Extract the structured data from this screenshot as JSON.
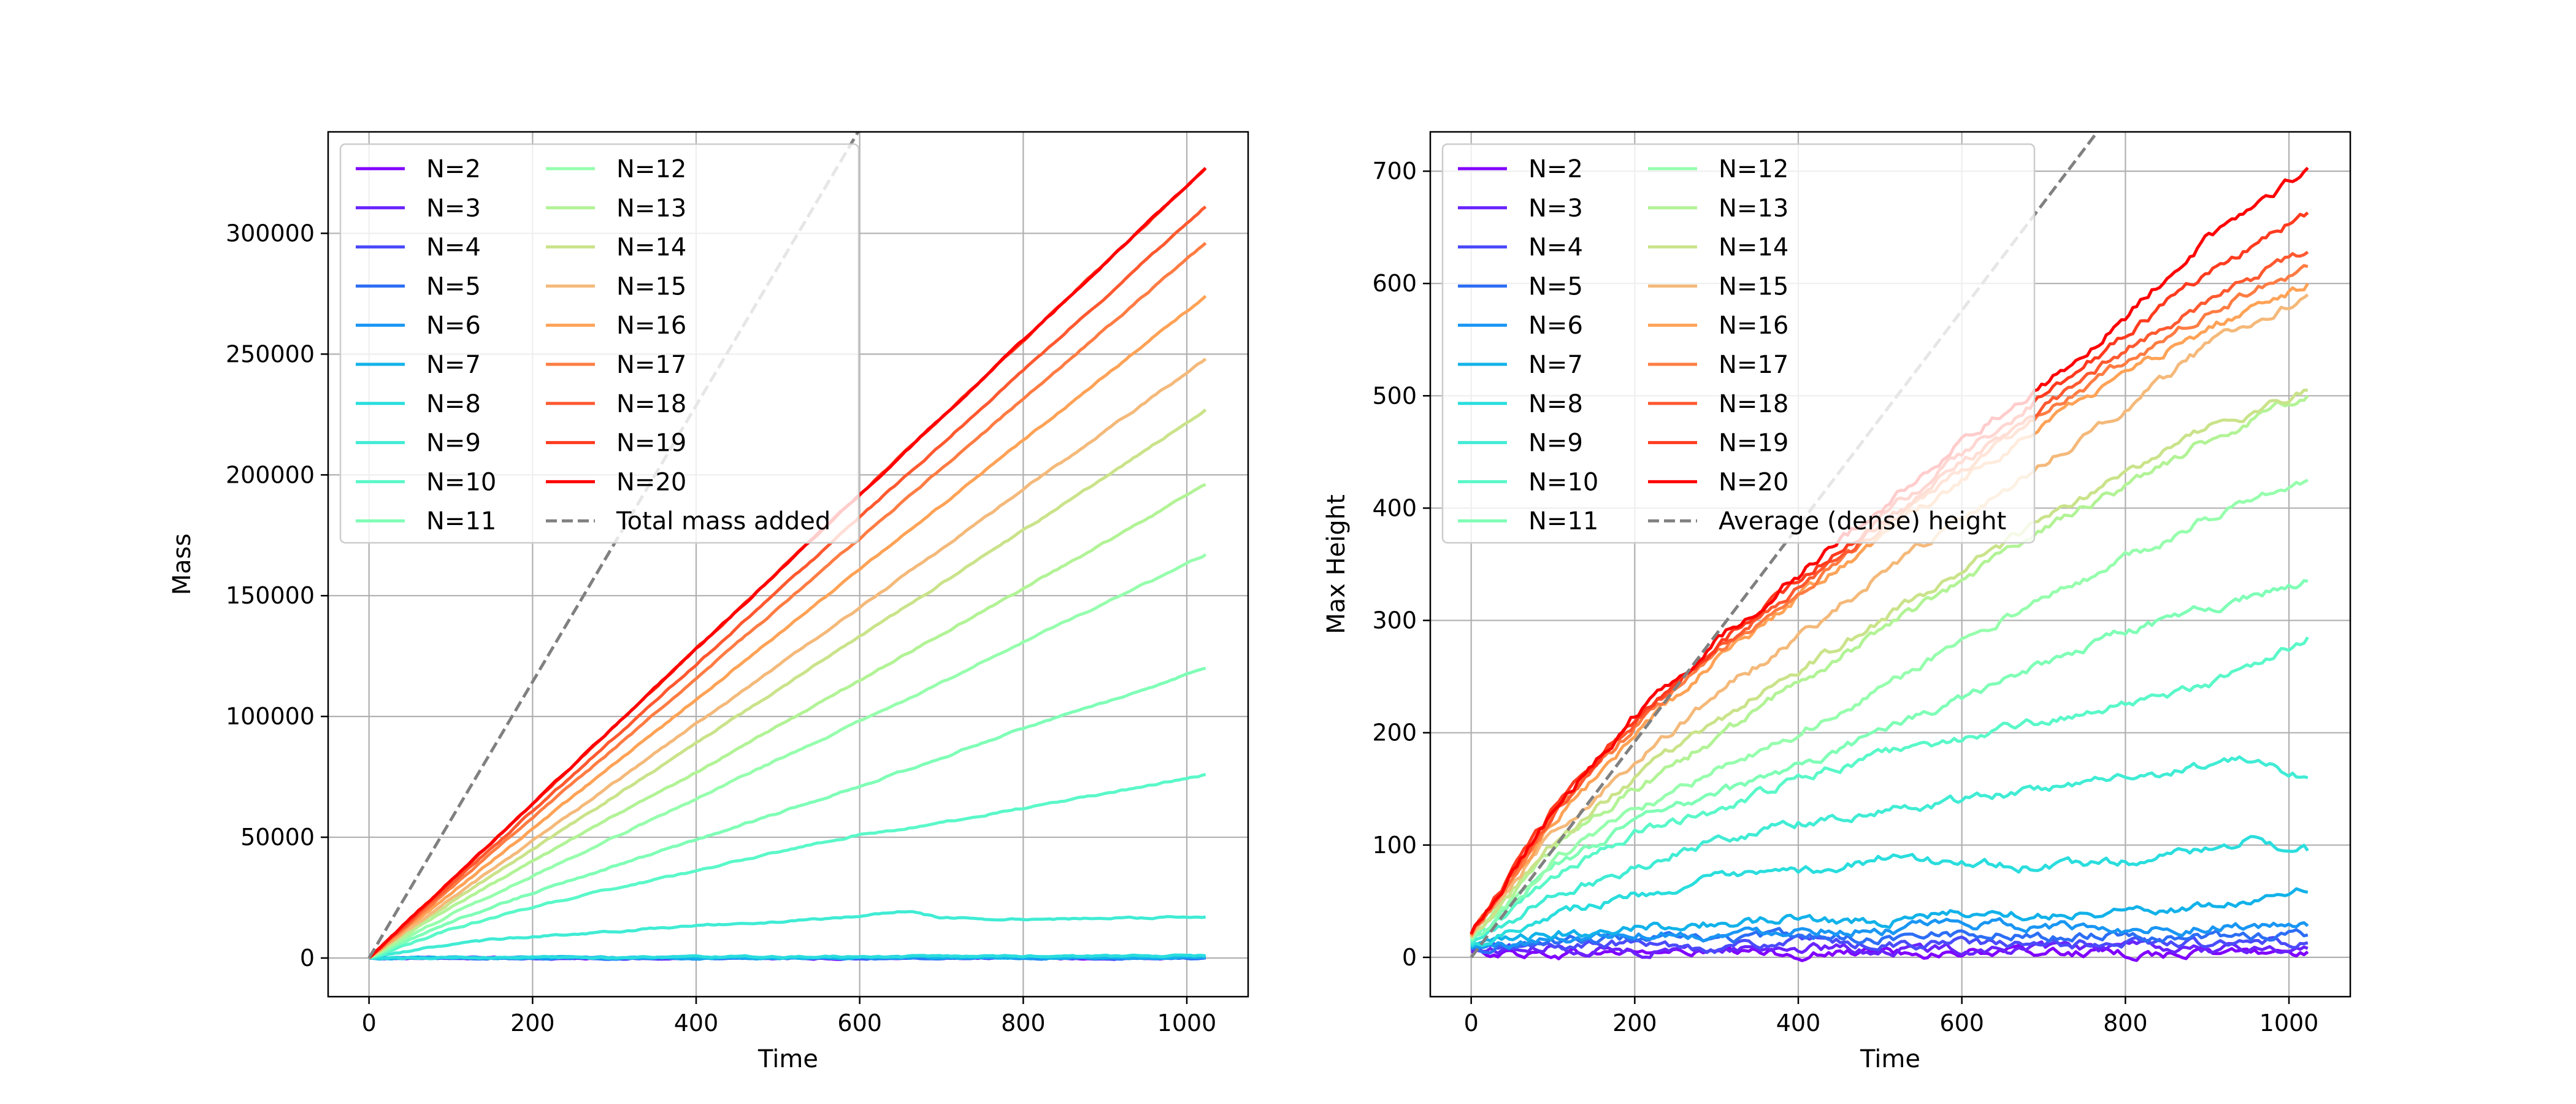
{
  "chart_data": [
    {
      "type": "line",
      "xlabel": "Time",
      "ylabel": "Mass",
      "xlim": [
        -50,
        1075
      ],
      "ylim": [
        -16000,
        342000
      ],
      "xticks": [
        0,
        200,
        400,
        600,
        800,
        1000
      ],
      "yticks": [
        0,
        50000,
        100000,
        150000,
        200000,
        250000,
        300000
      ],
      "ytick_labels": [
        "0",
        "50000",
        "100000",
        "150000",
        "200000",
        "250000",
        "300000"
      ],
      "grid": true,
      "legend": {
        "placement": "top-left",
        "columns": 2
      },
      "series": [
        {
          "name": "N=2",
          "color": "#8000ff",
          "x": [
            0,
            1023
          ],
          "y": [
            0,
            6
          ]
        },
        {
          "name": "N=3",
          "color": "#6a23fe",
          "x": [
            0,
            1023
          ],
          "y": [
            0,
            10
          ]
        },
        {
          "name": "N=4",
          "color": "#4a4afb",
          "x": [
            0,
            1023
          ],
          "y": [
            0,
            20
          ]
        },
        {
          "name": "N=5",
          "color": "#2c6ef5",
          "x": [
            0,
            1023
          ],
          "y": [
            0,
            40
          ]
        },
        {
          "name": "N=6",
          "color": "#1996f3",
          "x": [
            0,
            1023
          ],
          "y": [
            0,
            100
          ]
        },
        {
          "name": "N=7",
          "color": "#12b2e9",
          "x": [
            0,
            1023
          ],
          "y": [
            0,
            300
          ]
        },
        {
          "name": "N=8",
          "color": "#2adddd",
          "x": [
            0,
            1023
          ],
          "y": [
            0,
            900
          ]
        },
        {
          "name": "N=9",
          "color": "#40ecd4",
          "x": [
            0,
            100,
            200,
            300,
            400,
            500,
            600,
            660,
            700,
            800,
            900,
            1023
          ],
          "y": [
            0,
            6000,
            9000,
            11000,
            13500,
            15000,
            17500,
            19500,
            16500,
            16000,
            16500,
            17000
          ]
        },
        {
          "name": "N=10",
          "color": "#5af8c8",
          "x": [
            0,
            100,
            200,
            300,
            400,
            500,
            600,
            700,
            800,
            900,
            1023
          ],
          "y": [
            0,
            12000,
            21000,
            29000,
            36000,
            44000,
            51000,
            56000,
            62000,
            68000,
            76000
          ]
        },
        {
          "name": "N=11",
          "color": "#7ffeb6",
          "x": [
            0,
            100,
            200,
            300,
            400,
            500,
            600,
            700,
            800,
            900,
            1023
          ],
          "y": [
            0,
            15000,
            27000,
            38000,
            49000,
            60000,
            71000,
            83000,
            95000,
            106000,
            120000
          ]
        },
        {
          "name": "N=12",
          "color": "#96fead",
          "x": [
            0,
            100,
            200,
            300,
            400,
            500,
            600,
            700,
            800,
            900,
            1023
          ],
          "y": [
            0,
            18000,
            34000,
            50000,
            66000,
            82000,
            98000,
            114000,
            131000,
            147000,
            167000
          ]
        },
        {
          "name": "N=13",
          "color": "#b2f396",
          "x": [
            0,
            100,
            200,
            300,
            400,
            500,
            600,
            700,
            800,
            900,
            1023
          ],
          "y": [
            0,
            21000,
            40000,
            59000,
            77000,
            96000,
            115000,
            134000,
            153000,
            172000,
            196000
          ]
        },
        {
          "name": "N=14",
          "color": "#cae38a",
          "x": [
            0,
            100,
            200,
            300,
            400,
            500,
            600,
            700,
            800,
            900,
            1023
          ],
          "y": [
            0,
            23000,
            45000,
            67000,
            89000,
            111000,
            133000,
            155000,
            177000,
            199000,
            227000
          ]
        },
        {
          "name": "N=15",
          "color": "#f4b97a",
          "x": [
            0,
            100,
            200,
            300,
            400,
            500,
            600,
            700,
            800,
            900,
            1023
          ],
          "y": [
            0,
            24500,
            48500,
            72500,
            97000,
            121000,
            145000,
            169500,
            194000,
            218000,
            248000
          ]
        },
        {
          "name": "N=16",
          "color": "#ffa256",
          "x": [
            0,
            1023
          ],
          "y": [
            0,
            274000
          ]
        },
        {
          "name": "N=17",
          "color": "#ff7c43",
          "x": [
            0,
            1023
          ],
          "y": [
            0,
            296000
          ]
        },
        {
          "name": "N=18",
          "color": "#ff5930",
          "x": [
            0,
            1023
          ],
          "y": [
            0,
            311000
          ]
        },
        {
          "name": "N=19",
          "color": "#ff3b1f",
          "x": [
            0,
            1023
          ],
          "y": [
            0,
            327000
          ]
        },
        {
          "name": "N=20",
          "color": "#ff0000",
          "x": [
            0,
            1023
          ],
          "y": [
            0,
            327000
          ]
        },
        {
          "name": "Total mass added",
          "color": "#808080",
          "dashed": true,
          "x": [
            0,
            1023
          ],
          "y": [
            0,
            585000
          ]
        }
      ]
    },
    {
      "type": "line",
      "xlabel": "Time",
      "ylabel": "Max Height",
      "xlim": [
        -50,
        1075
      ],
      "ylim": [
        -35,
        735
      ],
      "xticks": [
        0,
        200,
        400,
        600,
        800,
        1000
      ],
      "yticks": [
        0,
        100,
        200,
        300,
        400,
        500,
        600,
        700
      ],
      "ytick_labels": [
        "0",
        "100",
        "200",
        "300",
        "400",
        "500",
        "600",
        "700"
      ],
      "grid": true,
      "legend": {
        "placement": "top-left",
        "columns": 2
      },
      "series": [
        {
          "name": "N=2",
          "color": "#8000ff",
          "x": [
            0,
            100,
            200,
            300,
            400,
            500,
            600,
            700,
            800,
            900,
            1023
          ],
          "y": [
            5,
            3,
            5,
            4,
            3,
            5,
            4,
            5,
            3,
            4,
            5
          ]
        },
        {
          "name": "N=3",
          "color": "#6a23fe",
          "x": [
            0,
            100,
            200,
            300,
            400,
            500,
            600,
            700,
            800,
            900,
            1023
          ],
          "y": [
            6,
            8,
            6,
            7,
            9,
            6,
            8,
            7,
            9,
            7,
            8
          ]
        },
        {
          "name": "N=4",
          "color": "#4a4afb",
          "x": [
            0,
            100,
            200,
            300,
            400,
            500,
            600,
            700,
            800,
            900,
            1023
          ],
          "y": [
            7,
            10,
            12,
            9,
            14,
            11,
            13,
            10,
            14,
            12,
            13
          ]
        },
        {
          "name": "N=5",
          "color": "#2c6ef5",
          "x": [
            0,
            100,
            200,
            300,
            400,
            500,
            600,
            700,
            800,
            900,
            1023
          ],
          "y": [
            8,
            14,
            18,
            15,
            20,
            17,
            22,
            19,
            21,
            18,
            20
          ]
        },
        {
          "name": "N=6",
          "color": "#1996f3",
          "x": [
            0,
            100,
            200,
            300,
            400,
            500,
            600,
            700,
            800,
            900,
            1023
          ],
          "y": [
            8,
            16,
            22,
            20,
            26,
            24,
            30,
            28,
            25,
            27,
            28
          ]
        },
        {
          "name": "N=7",
          "color": "#12b2e9",
          "x": [
            0,
            100,
            200,
            300,
            400,
            500,
            600,
            700,
            800,
            900,
            1023
          ],
          "y": [
            9,
            20,
            28,
            30,
            35,
            32,
            40,
            38,
            42,
            45,
            58
          ]
        },
        {
          "name": "N=8",
          "color": "#2adddd",
          "x": [
            0,
            100,
            200,
            300,
            400,
            500,
            600,
            700,
            800,
            900,
            950,
            1023
          ],
          "y": [
            10,
            40,
            55,
            70,
            75,
            88,
            85,
            80,
            85,
            95,
            105,
            95
          ]
        },
        {
          "name": "N=9",
          "color": "#40ecd4",
          "x": [
            0,
            100,
            200,
            300,
            400,
            500,
            600,
            700,
            800,
            900,
            950,
            1023
          ],
          "y": [
            12,
            55,
            80,
            105,
            120,
            130,
            140,
            150,
            160,
            170,
            175,
            160
          ]
        },
        {
          "name": "N=10",
          "color": "#5af8c8",
          "x": [
            0,
            100,
            200,
            300,
            400,
            500,
            600,
            700,
            800,
            900,
            1023
          ],
          "y": [
            14,
            70,
            110,
            130,
            160,
            180,
            195,
            210,
            225,
            240,
            285
          ]
        },
        {
          "name": "N=11",
          "color": "#7ffeb6",
          "x": [
            0,
            100,
            200,
            300,
            400,
            500,
            600,
            700,
            800,
            900,
            1023
          ],
          "y": [
            15,
            80,
            120,
            145,
            170,
            200,
            230,
            260,
            290,
            310,
            335
          ]
        },
        {
          "name": "N=12",
          "color": "#96fead",
          "x": [
            0,
            100,
            200,
            300,
            400,
            500,
            600,
            700,
            800,
            900,
            1023
          ],
          "y": [
            16,
            85,
            130,
            165,
            200,
            240,
            280,
            320,
            355,
            390,
            425
          ]
        },
        {
          "name": "N=13",
          "color": "#b2f396",
          "x": [
            0,
            100,
            200,
            300,
            400,
            500,
            600,
            700,
            800,
            900,
            1023
          ],
          "y": [
            17,
            95,
            150,
            195,
            245,
            290,
            335,
            380,
            420,
            460,
            500
          ]
        },
        {
          "name": "N=14",
          "color": "#cae38a",
          "x": [
            0,
            100,
            200,
            300,
            400,
            500,
            600,
            700,
            800,
            900,
            1023
          ],
          "y": [
            18,
            100,
            160,
            210,
            255,
            300,
            345,
            390,
            430,
            470,
            505
          ]
        },
        {
          "name": "N=15",
          "color": "#f4b97a",
          "x": [
            0,
            100,
            200,
            300,
            400,
            500,
            600,
            700,
            800,
            900,
            1023
          ],
          "y": [
            18,
            110,
            175,
            235,
            285,
            340,
            390,
            440,
            490,
            545,
            590
          ]
        },
        {
          "name": "N=16",
          "color": "#ffa256",
          "x": [
            0,
            100,
            200,
            300,
            400,
            500,
            600,
            700,
            800,
            900,
            1023
          ],
          "y": [
            19,
            120,
            200,
            265,
            320,
            375,
            425,
            475,
            520,
            560,
            600
          ]
        },
        {
          "name": "N=17",
          "color": "#ff7c43",
          "x": [
            0,
            100,
            200,
            300,
            400,
            500,
            600,
            700,
            800,
            900,
            1023
          ],
          "y": [
            20,
            125,
            205,
            270,
            325,
            380,
            435,
            485,
            530,
            575,
            615
          ]
        },
        {
          "name": "N=18",
          "color": "#ff5930",
          "x": [
            0,
            100,
            200,
            300,
            400,
            500,
            600,
            700,
            800,
            900,
            1023
          ],
          "y": [
            20,
            128,
            208,
            275,
            330,
            385,
            440,
            490,
            540,
            585,
            628
          ]
        },
        {
          "name": "N=19",
          "color": "#ff3b1f",
          "x": [
            0,
            100,
            200,
            300,
            400,
            500,
            600,
            700,
            800,
            900,
            1023
          ],
          "y": [
            21,
            130,
            212,
            278,
            335,
            392,
            448,
            500,
            555,
            610,
            663
          ]
        },
        {
          "name": "N=20",
          "color": "#ff0000",
          "x": [
            0,
            100,
            200,
            300,
            400,
            500,
            600,
            700,
            800,
            900,
            1023
          ],
          "y": [
            21,
            130,
            215,
            282,
            340,
            400,
            460,
            510,
            570,
            640,
            703
          ]
        },
        {
          "name": "Average (dense) height",
          "color": "#808080",
          "dashed": true,
          "x": [
            0,
            1023
          ],
          "y": [
            0,
            982
          ]
        }
      ]
    }
  ]
}
